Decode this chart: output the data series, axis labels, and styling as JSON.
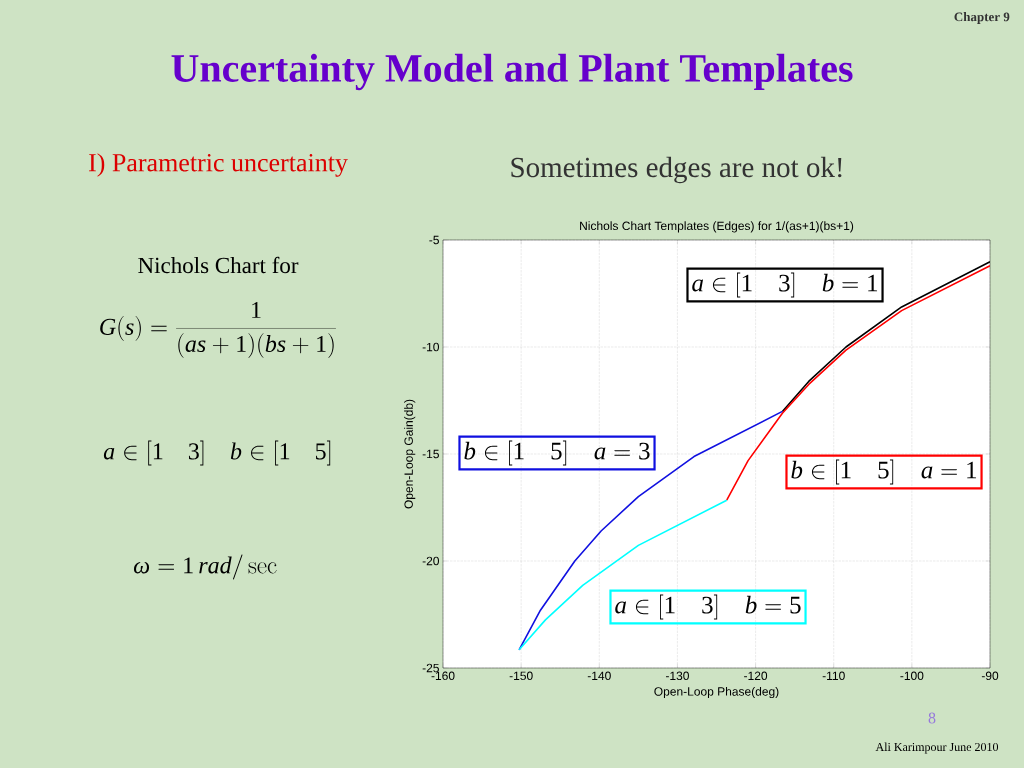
{
  "chart_data": {
    "type": "line",
    "title": "Nichols Chart Templates (Edges) for 1/(as+1)(bs+1)",
    "xlabel": "Open-Loop Phase(deg)",
    "ylabel": "Open-Loop Gain(db)",
    "series": [
      {
        "color": "#000000",
        "x": [
          -90,
          -101.31,
          -108.43,
          -113.2,
          -116.57
        ],
        "values": [
          -6.02,
          -8.13,
          -10.0,
          -11.61,
          -13.01
        ]
      },
      {
        "color": "#ff0000",
        "x": [
          -90,
          -101.31,
          -108.43,
          -113.2,
          -116.57,
          -120.96,
          -123.69
        ],
        "values": [
          -6.2,
          -8.3,
          -10.15,
          -11.75,
          -13.1,
          -15.31,
          -17.16
        ]
      },
      {
        "color": "#1010e0",
        "x": [
          -116.57,
          -127.88,
          -135,
          -139.77,
          -143.13,
          -147.53,
          -150.26
        ],
        "values": [
          -13.01,
          -15.12,
          -16.99,
          -18.6,
          -20.0,
          -22.3,
          -24.15
        ]
      },
      {
        "color": "#00ffff",
        "x": [
          -123.69,
          -135,
          -142.12,
          -146.89,
          -150.26
        ],
        "values": [
          -17.16,
          -19.27,
          -21.14,
          -22.75,
          -24.15
        ]
      }
    ],
    "xlim": [
      -160,
      -90
    ],
    "ylim": [
      -25,
      -5
    ],
    "xticks": [
      -160,
      -150,
      -140,
      -130,
      -120,
      -110,
      -100,
      -90
    ],
    "yticks": [
      -25,
      -20,
      -15,
      -10,
      -5
    ],
    "grid": true,
    "annotations": [
      "Chapter 9",
      "Uncertainty Model and Plant Templates",
      "I) Parametric uncertainty",
      "Sometimes edges are not ok!",
      "Nichols Chart  for",
      "G(s)=\\frac{1}{(as+1)(bs+1)}",
      "a\\in[1\\quad 3]\\quad b\\in[1\\quad 5]",
      "\\omega=1\\,rad/\\sec",
      "8",
      "Ali Karimpour  June 2010",
      "a\\in[1\\quad 3]\\quad b=1",
      "b\\in[1\\quad 5]\\quad a=3",
      "b\\in[1\\quad 5]\\quad a=1",
      "a\\in[1\\quad 3]\\quad b=5"
    ]
  }
}
